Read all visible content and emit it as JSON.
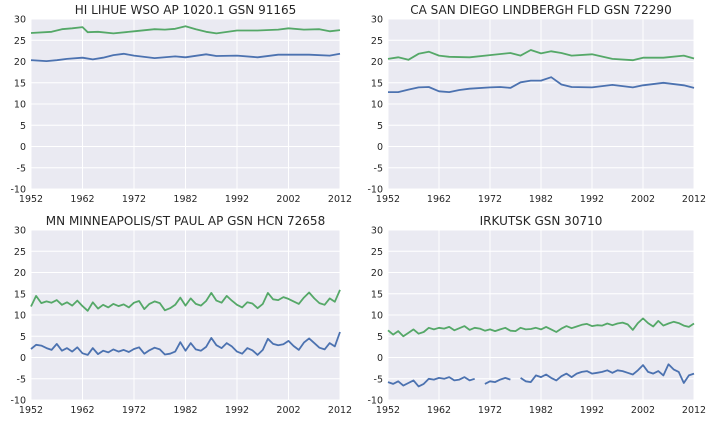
{
  "chart_data": [
    {
      "type": "line",
      "title": "HI LIHUE WSO AP 1020.1 GSN 91165",
      "xlim": [
        1952,
        2012
      ],
      "ylim": [
        -10,
        30
      ],
      "xticks": [
        1952,
        1962,
        1972,
        1982,
        1992,
        2002,
        2012
      ],
      "yticks": [
        -10,
        -5,
        0,
        5,
        10,
        15,
        20,
        25,
        30
      ],
      "grid": true,
      "colors": [
        "#4c72b0",
        "#55a868"
      ],
      "series": [
        {
          "color": "#55a868",
          "x": [
            1952,
            1956,
            1958,
            1960,
            1962,
            1963,
            1965,
            1968,
            1972,
            1976,
            1978,
            1980,
            1982,
            1984,
            1986,
            1988,
            1992,
            1996,
            2000,
            2002,
            2005,
            2008,
            2010,
            2012
          ],
          "y": [
            26.7,
            27.0,
            27.6,
            27.8,
            28.1,
            26.9,
            27.0,
            26.6,
            27.1,
            27.6,
            27.5,
            27.7,
            28.3,
            27.6,
            27.0,
            26.6,
            27.3,
            27.3,
            27.5,
            27.8,
            27.5,
            27.6,
            27.1,
            27.4
          ]
        },
        {
          "color": "#4c72b0",
          "x": [
            1952,
            1955,
            1957,
            1959,
            1962,
            1964,
            1966,
            1968,
            1970,
            1972,
            1976,
            1980,
            1982,
            1986,
            1988,
            1992,
            1996,
            2000,
            2002,
            2006,
            2010,
            2012
          ],
          "y": [
            20.3,
            20.1,
            20.3,
            20.6,
            20.9,
            20.5,
            20.9,
            21.5,
            21.8,
            21.4,
            20.8,
            21.2,
            21.0,
            21.7,
            21.3,
            21.4,
            21.0,
            21.6,
            21.6,
            21.6,
            21.4,
            21.8
          ]
        }
      ]
    },
    {
      "type": "line",
      "title": "CA SAN DIEGO LINDBERGH FLD GSN 72290",
      "xlim": [
        1952,
        2012
      ],
      "ylim": [
        -10,
        30
      ],
      "xticks": [
        1952,
        1962,
        1972,
        1982,
        1992,
        2002,
        2012
      ],
      "yticks": [
        -10,
        -5,
        0,
        5,
        10,
        15,
        20,
        25,
        30
      ],
      "grid": true,
      "colors": [
        "#4c72b0",
        "#55a868"
      ],
      "series": [
        {
          "color": "#55a868",
          "x": [
            1952,
            1954,
            1956,
            1958,
            1960,
            1962,
            1964,
            1968,
            1972,
            1976,
            1978,
            1980,
            1982,
            1984,
            1986,
            1988,
            1992,
            1996,
            2000,
            2002,
            2006,
            2010,
            2012
          ],
          "y": [
            20.6,
            21.0,
            20.4,
            21.8,
            22.3,
            21.4,
            21.1,
            21.0,
            21.5,
            22.0,
            21.4,
            22.7,
            21.9,
            22.4,
            22.0,
            21.4,
            21.7,
            20.6,
            20.3,
            20.9,
            20.9,
            21.4,
            20.7
          ]
        },
        {
          "color": "#4c72b0",
          "x": [
            1952,
            1954,
            1956,
            1958,
            1960,
            1962,
            1964,
            1966,
            1968,
            1972,
            1974,
            1976,
            1978,
            1980,
            1982,
            1984,
            1986,
            1988,
            1992,
            1996,
            2000,
            2002,
            2006,
            2010,
            2012
          ],
          "y": [
            12.8,
            12.8,
            13.4,
            13.9,
            14.0,
            13.0,
            12.8,
            13.3,
            13.6,
            13.9,
            14.0,
            13.8,
            15.1,
            15.5,
            15.5,
            16.3,
            14.6,
            14.0,
            13.9,
            14.5,
            13.9,
            14.4,
            15.0,
            14.4,
            13.8
          ]
        }
      ]
    },
    {
      "type": "line",
      "title": "MN MINNEAPOLIS/ST PAUL AP GSN HCN 72658",
      "xlim": [
        1952,
        2012
      ],
      "ylim": [
        -10,
        30
      ],
      "xticks": [
        1952,
        1962,
        1972,
        1982,
        1992,
        2002,
        2012
      ],
      "yticks": [
        -10,
        -5,
        0,
        5,
        10,
        15,
        20,
        25,
        30
      ],
      "grid": true,
      "colors": [
        "#4c72b0",
        "#55a868"
      ],
      "series": [
        {
          "color": "#55a868",
          "x": [
            1952,
            1953,
            1954,
            1955,
            1956,
            1957,
            1958,
            1959,
            1960,
            1961,
            1962,
            1963,
            1964,
            1965,
            1966,
            1967,
            1968,
            1969,
            1970,
            1971,
            1972,
            1973,
            1974,
            1975,
            1976,
            1977,
            1978,
            1979,
            1980,
            1981,
            1982,
            1983,
            1984,
            1985,
            1986,
            1987,
            1988,
            1989,
            1990,
            1991,
            1992,
            1993,
            1994,
            1995,
            1996,
            1997,
            1998,
            1999,
            2000,
            2001,
            2002,
            2003,
            2004,
            2005,
            2006,
            2007,
            2008,
            2009,
            2010,
            2011,
            2012
          ],
          "y": [
            12.0,
            14.5,
            12.8,
            13.2,
            12.9,
            13.5,
            12.4,
            13.0,
            12.2,
            13.4,
            12.1,
            11.0,
            13.0,
            11.5,
            12.4,
            11.8,
            12.6,
            12.1,
            12.5,
            11.8,
            12.9,
            13.3,
            11.4,
            12.6,
            13.2,
            12.8,
            11.1,
            11.6,
            12.4,
            14.1,
            12.2,
            13.9,
            12.6,
            12.2,
            13.3,
            15.2,
            13.4,
            12.9,
            14.5,
            13.4,
            12.4,
            11.8,
            13.0,
            12.7,
            11.6,
            12.6,
            15.2,
            13.7,
            13.5,
            14.2,
            13.8,
            13.2,
            12.6,
            14.1,
            15.3,
            13.9,
            12.8,
            12.4,
            13.9,
            13.1,
            15.9
          ]
        },
        {
          "color": "#4c72b0",
          "x": [
            1952,
            1953,
            1954,
            1955,
            1956,
            1957,
            1958,
            1959,
            1960,
            1961,
            1962,
            1963,
            1964,
            1965,
            1966,
            1967,
            1968,
            1969,
            1970,
            1971,
            1972,
            1973,
            1974,
            1975,
            1976,
            1977,
            1978,
            1979,
            1980,
            1981,
            1982,
            1983,
            1984,
            1985,
            1986,
            1987,
            1988,
            1989,
            1990,
            1991,
            1992,
            1993,
            1994,
            1995,
            1996,
            1997,
            1998,
            1999,
            2000,
            2001,
            2002,
            2003,
            2004,
            2005,
            2006,
            2007,
            2008,
            2009,
            2010,
            2011,
            2012
          ],
          "y": [
            2.0,
            3.0,
            2.8,
            2.2,
            1.8,
            3.2,
            1.6,
            2.2,
            1.4,
            2.4,
            1.0,
            0.6,
            2.2,
            0.8,
            1.6,
            1.2,
            1.9,
            1.4,
            1.8,
            1.3,
            2.0,
            2.4,
            0.9,
            1.7,
            2.3,
            1.9,
            0.7,
            0.9,
            1.4,
            3.6,
            1.6,
            3.4,
            1.9,
            1.6,
            2.5,
            4.6,
            2.9,
            2.2,
            3.4,
            2.6,
            1.4,
            0.9,
            2.2,
            1.7,
            0.6,
            1.8,
            4.4,
            3.2,
            2.9,
            3.1,
            3.9,
            2.7,
            1.8,
            3.5,
            4.5,
            3.4,
            2.3,
            1.9,
            3.4,
            2.6,
            6.0
          ]
        }
      ]
    },
    {
      "type": "line",
      "title": "IRKUTSK GSN 30710",
      "xlim": [
        1952,
        2012
      ],
      "ylim": [
        -10,
        30
      ],
      "xticks": [
        1952,
        1962,
        1972,
        1982,
        1992,
        2002,
        2012
      ],
      "yticks": [
        -10,
        -5,
        0,
        5,
        10,
        15,
        20,
        25,
        30
      ],
      "grid": true,
      "colors": [
        "#4c72b0",
        "#55a868"
      ],
      "series": [
        {
          "color": "#55a868",
          "x": [
            1952,
            1953,
            1954,
            1955,
            1956,
            1957,
            1958,
            1959,
            1960,
            1961,
            1962,
            1963,
            1964,
            1965,
            1966,
            1967,
            1968,
            1969,
            1970,
            1971,
            1972,
            1973,
            1974,
            1975,
            1976,
            1977,
            1978,
            1979,
            1980,
            1981,
            1982,
            1983,
            1984,
            1985,
            1986,
            1987,
            1988,
            1989,
            1990,
            1991,
            1992,
            1993,
            1994,
            1995,
            1996,
            1997,
            1998,
            1999,
            2000,
            2001,
            2002,
            2003,
            2004,
            2005,
            2006,
            2007,
            2008,
            2009,
            2010,
            2011,
            2012
          ],
          "y": [
            6.4,
            5.4,
            6.2,
            5.0,
            5.8,
            6.6,
            5.6,
            6.0,
            7.0,
            6.6,
            7.0,
            6.8,
            7.2,
            6.4,
            6.9,
            7.4,
            6.5,
            7.0,
            6.8,
            6.3,
            6.6,
            6.2,
            6.6,
            7.0,
            6.3,
            6.2,
            7.0,
            6.6,
            6.7,
            7.0,
            6.6,
            7.2,
            6.6,
            6.0,
            6.8,
            7.4,
            6.9,
            7.3,
            7.7,
            7.9,
            7.4,
            7.6,
            7.5,
            8.0,
            7.6,
            8.0,
            8.2,
            7.8,
            6.5,
            8.1,
            9.2,
            8.1,
            7.3,
            8.6,
            7.5,
            8.0,
            8.4,
            8.1,
            7.5,
            7.2,
            8.0
          ]
        },
        {
          "color": "#4c72b0",
          "x": [
            1952,
            1953,
            1954,
            1955,
            1956,
            1957,
            1958,
            1959,
            1960,
            1961,
            1962,
            1963,
            1964,
            1965,
            1966,
            1967,
            1968,
            1969,
            null,
            1971,
            1972,
            1973,
            1974,
            1975,
            1976,
            null,
            1978,
            1979,
            1980,
            1981,
            1982,
            1983,
            1984,
            1985,
            1986,
            1987,
            1988,
            1989,
            1990,
            1991,
            1992,
            1993,
            1994,
            1995,
            1996,
            1997,
            1998,
            1999,
            2000,
            2001,
            2002,
            2003,
            2004,
            2005,
            2006,
            2007,
            2008,
            2009,
            2010,
            2011,
            2012
          ],
          "y": [
            -5.8,
            -6.2,
            -5.6,
            -6.6,
            -6.0,
            -5.4,
            -6.8,
            -6.2,
            -5.0,
            -5.2,
            -4.8,
            -5.0,
            -4.6,
            -5.4,
            -5.2,
            -4.6,
            -5.4,
            -5.0,
            null,
            -6.2,
            -5.6,
            -5.8,
            -5.2,
            -4.8,
            -5.2,
            null,
            -4.8,
            -5.6,
            -5.8,
            -4.2,
            -4.6,
            -4.0,
            -4.8,
            -5.4,
            -4.4,
            -3.8,
            -4.6,
            -3.8,
            -3.4,
            -3.2,
            -3.8,
            -3.6,
            -3.4,
            -3.0,
            -3.6,
            -3.0,
            -3.2,
            -3.6,
            -4.0,
            -3.0,
            -1.8,
            -3.4,
            -3.8,
            -3.2,
            -4.2,
            -1.6,
            -2.8,
            -3.4,
            -6.0,
            -4.2,
            -3.8
          ]
        }
      ]
    }
  ]
}
